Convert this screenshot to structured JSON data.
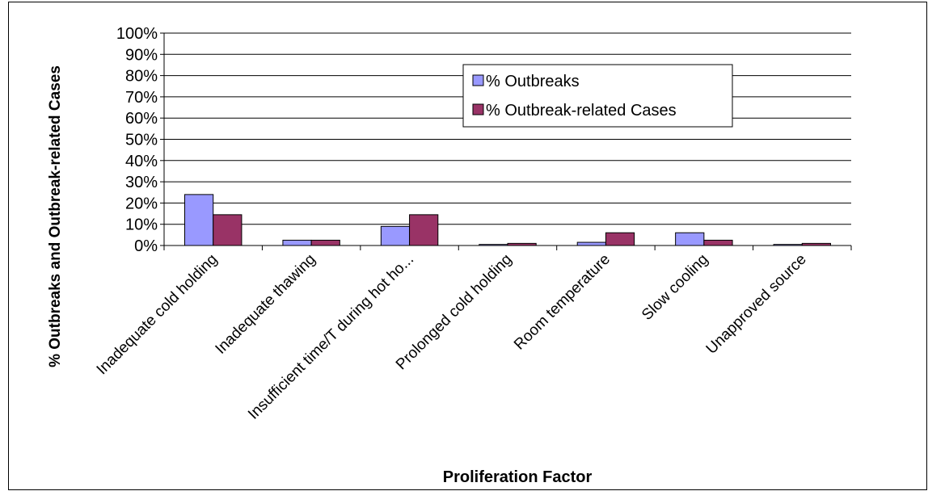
{
  "chart_data": {
    "type": "bar",
    "x_label": "Proliferation Factor",
    "y_label": "% Outbreaks and Outbreak-related Cases",
    "categories": [
      "Inadequate cold holding",
      "Inadequate thawing",
      "Insufficient time/T during hot ho...",
      "Prolonged cold holding",
      "Room temperature",
      "Slow cooling",
      "Unapproved source"
    ],
    "series": [
      {
        "name": "% Outbreaks",
        "color": "#9999ff",
        "values": [
          24,
          2.5,
          9,
          0.5,
          1.5,
          6,
          0.5
        ]
      },
      {
        "name": "% Outbreak-related Cases",
        "color": "#993366",
        "values": [
          14.5,
          2.5,
          14.5,
          1,
          6,
          2.5,
          1
        ]
      }
    ],
    "ylim": [
      0,
      100
    ],
    "yticks": [
      {
        "value": 0,
        "label": "0%"
      },
      {
        "value": 10,
        "label": "10%"
      },
      {
        "value": 20,
        "label": "20%"
      },
      {
        "value": 30,
        "label": "30%"
      },
      {
        "value": 40,
        "label": "40%"
      },
      {
        "value": 50,
        "label": "50%"
      },
      {
        "value": 60,
        "label": "60%"
      },
      {
        "value": 70,
        "label": "70%"
      },
      {
        "value": 80,
        "label": "80%"
      },
      {
        "value": 90,
        "label": "90%"
      },
      {
        "value": 100,
        "label": "100%"
      }
    ],
    "grid": true,
    "legend": "top-right"
  }
}
